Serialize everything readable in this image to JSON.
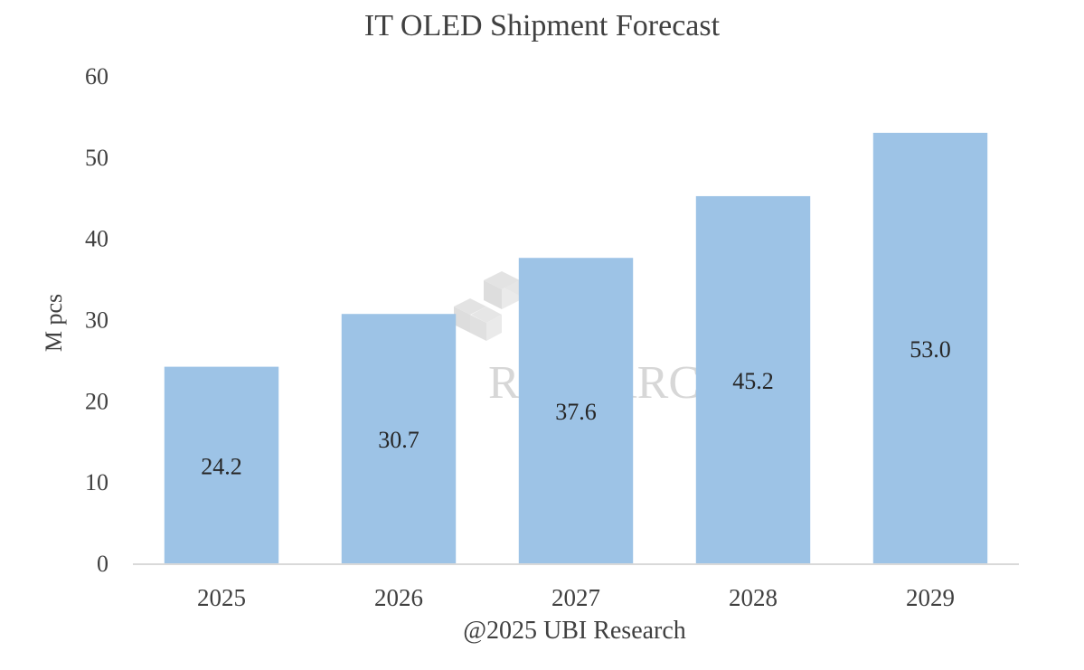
{
  "chart_data": {
    "type": "bar",
    "title": "IT OLED Shipment Forecast",
    "xlabel": "",
    "ylabel": "M pcs",
    "categories": [
      "2025",
      "2026",
      "2027",
      "2028",
      "2029"
    ],
    "values": [
      24.2,
      30.7,
      37.6,
      45.2,
      53.0
    ],
    "value_labels": [
      "24.2",
      "30.7",
      "37.6",
      "45.2",
      "53.0"
    ],
    "ylim": [
      0,
      60
    ],
    "yticks": [
      "0",
      "10",
      "20",
      "30",
      "40",
      "50",
      "60"
    ],
    "grid": false,
    "legend": "none",
    "bar_color": "#9dc3e6",
    "source_note": "@2025 UBI Research",
    "watermark": "UBI RESEARCH"
  }
}
